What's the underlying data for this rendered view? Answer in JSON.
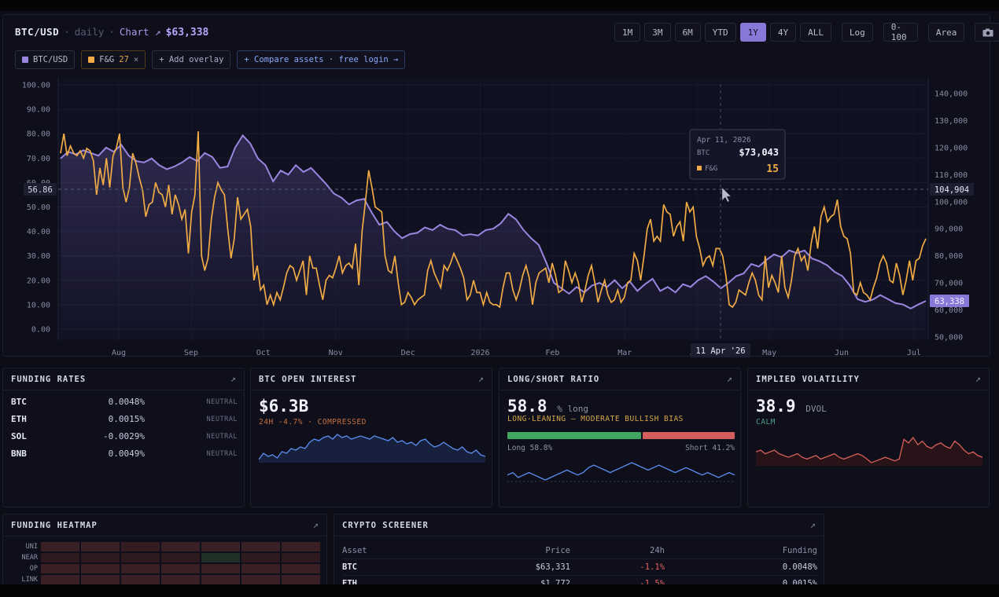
{
  "header": {
    "pair": "BTC/USD",
    "interval": "daily",
    "chart_link": "Chart ↗",
    "price": "$63,338",
    "ranges": [
      "1M",
      "3M",
      "6M",
      "YTD",
      "1Y",
      "4Y",
      "ALL"
    ],
    "active_range": "1Y",
    "log_label": "Log",
    "scale_label": "0-100",
    "area_label": "Area",
    "camera_icon": "camera-icon"
  },
  "chips": {
    "btc": "BTC/USD",
    "fg_label": "F&G",
    "fg_value": "27",
    "close": "×",
    "add_overlay": "+ Add overlay",
    "compare": "+ Compare assets · free login →"
  },
  "tooltip": {
    "date": "Apr 11, 2026",
    "btc_label": "BTC",
    "btc_value": "$73,043",
    "fg_label": "F&G",
    "fg_value": "15"
  },
  "crosshair": {
    "y_left": "56.86",
    "y_right": "104,904",
    "x_label": "11 Apr '26",
    "last_price": "63,338"
  },
  "colors": {
    "btc": "#9a86e0",
    "fg": "#f0ab45",
    "accent": "#8a78d8",
    "long": "#3fa561",
    "short": "#d35d5d",
    "negative": "#e0605e"
  },
  "chart_data": {
    "type": "line",
    "x_ticks": [
      "Aug",
      "Sep",
      "Oct",
      "Nov",
      "Dec",
      "2026",
      "Feb",
      "Mar",
      "Apr",
      "May",
      "Jun",
      "Jul"
    ],
    "left_axis": {
      "ticks": [
        "100.00",
        "90.00",
        "80.00",
        "70.00",
        "60.00",
        "50.00",
        "40.00",
        "30.00",
        "20.00",
        "10.00",
        "0.00"
      ],
      "ylim": [
        0,
        100
      ]
    },
    "right_axis": {
      "ticks": [
        "140,000",
        "130,000",
        "120,000",
        "110,000",
        "100,000",
        "90,000",
        "80,000",
        "70,000",
        "60,000",
        "50,000"
      ],
      "ylim": [
        50000,
        140000
      ]
    },
    "series": [
      {
        "name": "BTC/USD",
        "axis": "right",
        "values": [
          116000,
          118500,
          117500,
          119000,
          118000,
          117000,
          120000,
          118500,
          121000,
          117000,
          115000,
          114500,
          116000,
          113500,
          112000,
          113000,
          114500,
          116500,
          115000,
          118000,
          116500,
          112500,
          113000,
          120000,
          124500,
          121500,
          116000,
          113500,
          107500,
          111500,
          110000,
          113500,
          111000,
          112500,
          109500,
          106500,
          103000,
          101500,
          99000,
          100500,
          101000,
          96000,
          91500,
          92500,
          89000,
          86500,
          88000,
          88500,
          90500,
          89500,
          91500,
          90000,
          89500,
          87500,
          88000,
          87500,
          89500,
          90000,
          92000,
          95500,
          93500,
          89500,
          86500,
          84000,
          77500,
          70000,
          68000,
          66000,
          68500,
          66500,
          69000,
          70000,
          68500,
          71000,
          68000,
          70500,
          67000,
          69500,
          71500,
          67000,
          68500,
          66500,
          69500,
          68500,
          71000,
          72500,
          70500,
          68000,
          70000,
          72500,
          73500,
          77000,
          76000,
          78500,
          80500,
          79500,
          82000,
          81000,
          82000,
          79000,
          78000,
          76500,
          74000,
          72500,
          69000,
          64000,
          63000,
          63800,
          65500,
          64000,
          62500,
          62000,
          60500,
          62000,
          63338
        ]
      },
      {
        "name": "F&G",
        "axis": "left",
        "values": [
          72,
          80,
          71,
          75,
          72,
          71,
          73,
          70,
          74,
          73,
          69,
          55,
          66,
          59,
          70,
          58,
          71,
          74,
          80,
          58,
          52,
          58,
          72,
          68,
          62,
          57,
          46,
          51,
          52,
          60,
          56,
          55,
          50,
          59,
          47,
          55,
          51,
          45,
          49,
          31,
          48,
          55,
          81,
          30,
          24,
          29,
          45,
          54,
          60,
          57,
          55,
          41,
          29,
          37,
          54,
          45,
          47,
          49,
          42,
          20,
          26,
          16,
          18,
          10,
          14,
          10,
          15,
          12,
          17,
          23,
          26,
          25,
          20,
          24,
          28,
          14,
          30,
          25,
          25,
          18,
          12,
          20,
          22,
          21,
          25,
          30,
          23,
          26,
          27,
          25,
          35,
          18,
          40,
          52,
          65,
          58,
          50,
          49,
          48,
          30,
          24,
          23,
          30,
          19,
          10,
          11,
          15,
          13,
          10,
          12,
          13,
          14,
          24,
          28,
          23,
          20,
          17,
          26,
          24,
          27,
          31,
          28,
          25,
          21,
          12,
          14,
          20,
          15,
          15,
          10,
          15,
          11,
          10,
          10,
          9,
          17,
          23,
          23,
          16,
          12,
          16,
          22,
          26,
          21,
          10,
          19,
          23,
          24,
          25,
          19,
          27,
          22,
          15,
          16,
          28,
          24,
          19,
          23,
          19,
          11,
          16,
          22,
          26,
          19,
          11,
          16,
          20,
          14,
          11,
          12,
          16,
          11,
          13,
          19,
          20,
          31,
          28,
          20,
          30,
          41,
          45,
          36,
          38,
          36,
          51,
          48,
          47,
          38,
          42,
          44,
          36,
          52,
          48,
          50,
          38,
          33,
          26,
          29,
          30,
          26,
          33,
          33,
          30,
          22,
          10,
          9,
          11,
          16,
          15,
          14,
          19,
          23,
          20,
          14,
          12,
          30,
          17,
          22,
          19,
          15,
          30,
          17,
          13,
          20,
          30,
          33,
          28,
          30,
          24,
          35,
          42,
          33,
          46,
          50,
          44,
          46,
          47,
          53,
          42,
          38,
          37,
          31,
          15,
          14,
          19,
          15,
          14,
          12,
          17,
          21,
          27,
          30,
          27,
          20,
          19,
          27,
          22,
          14,
          20,
          28,
          20,
          28,
          29,
          34,
          37
        ]
      }
    ]
  },
  "cards": {
    "funding": {
      "title": "FUNDING RATES",
      "rows": [
        {
          "asset": "BTC",
          "value": "0.0048%",
          "tag": "NEUTRAL"
        },
        {
          "asset": "ETH",
          "value": "0.0015%",
          "tag": "NEUTRAL"
        },
        {
          "asset": "SOL",
          "value": "-0.0029%",
          "tag": "NEUTRAL"
        },
        {
          "asset": "BNB",
          "value": "0.0049%",
          "tag": "NEUTRAL"
        }
      ]
    },
    "oi": {
      "title": "BTC OPEN INTEREST",
      "value": "$6.3B",
      "sub": "24H -4.7% · COMPRESSED"
    },
    "ls": {
      "title": "LONG/SHORT RATIO",
      "value": "58.8",
      "unit": "% long",
      "sub": "LONG-LEANING — MODERATE BULLISH BIAS",
      "long_label": "Long 58.8%",
      "short_label": "Short 41.2%",
      "long_fraction": 0.588
    },
    "iv": {
      "title": "IMPLIED VOLATILITY",
      "value": "38.9",
      "unit": "DVOL",
      "sub": "CALM"
    },
    "heatmap": {
      "title": "FUNDING HEATMAP",
      "rows": [
        "UNI",
        "NEAR",
        "OP",
        "LINK"
      ]
    },
    "screener": {
      "title": "CRYPTO SCREENER",
      "headers": {
        "asset": "Asset",
        "price": "Price",
        "change": "24h",
        "funding": "Funding"
      },
      "rows": [
        {
          "asset": "BTC",
          "price": "$63,331",
          "change": "-1.1%",
          "funding": "0.0048%"
        },
        {
          "asset": "ETH",
          "price": "$1,772",
          "change": "-1.5%",
          "funding": "0.0015%"
        }
      ]
    }
  }
}
